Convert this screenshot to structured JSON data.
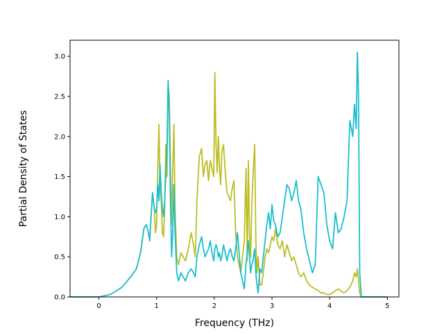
{
  "chart_data": {
    "type": "line",
    "title": "",
    "xlabel": "Frequency (THz)",
    "ylabel": "Partial Density of States",
    "xlim": [
      -0.5,
      5.2
    ],
    "ylim": [
      0,
      3.2
    ],
    "xticks": [
      0,
      1,
      2,
      3,
      4,
      5
    ],
    "yticks": [
      0.0,
      0.5,
      1.0,
      1.5,
      2.0,
      2.5,
      3.0
    ],
    "xtick_labels": [
      "0",
      "1",
      "2",
      "3",
      "4",
      "5"
    ],
    "ytick_labels": [
      "0.0",
      "0.5",
      "1.0",
      "1.5",
      "2.0",
      "2.5",
      "3.0"
    ],
    "grid": false,
    "series": [
      {
        "color": "#bcbd22",
        "x": [
          -0.5,
          0,
          0.2,
          0.4,
          0.55,
          0.65,
          0.72,
          0.78,
          0.82,
          0.86,
          0.88,
          0.9,
          0.93,
          0.96,
          0.98,
          1.0,
          1.02,
          1.04,
          1.06,
          1.08,
          1.1,
          1.12,
          1.14,
          1.16,
          1.18,
          1.2,
          1.22,
          1.24,
          1.26,
          1.28,
          1.3,
          1.32,
          1.35,
          1.38,
          1.42,
          1.46,
          1.5,
          1.55,
          1.6,
          1.64,
          1.67,
          1.7,
          1.74,
          1.78,
          1.81,
          1.84,
          1.87,
          1.9,
          1.93,
          1.96,
          1.99,
          2.01,
          2.03,
          2.05,
          2.07,
          2.09,
          2.11,
          2.13,
          2.16,
          2.19,
          2.22,
          2.25,
          2.28,
          2.31,
          2.34,
          2.37,
          2.4,
          2.43,
          2.46,
          2.49,
          2.52,
          2.55,
          2.57,
          2.59,
          2.61,
          2.63,
          2.65,
          2.67,
          2.7,
          2.72,
          2.74,
          2.76,
          2.79,
          2.82,
          2.85,
          2.88,
          2.91,
          2.94,
          2.97,
          3.0,
          3.03,
          3.06,
          3.1,
          3.14,
          3.18,
          3.22,
          3.26,
          3.3,
          3.34,
          3.38,
          3.42,
          3.46,
          3.5,
          3.55,
          3.6,
          3.65,
          3.7,
          3.75,
          3.8,
          3.85,
          3.9,
          3.95,
          4.0,
          4.05,
          4.1,
          4.15,
          4.2,
          4.25,
          4.3,
          4.35,
          4.4,
          4.43,
          4.46,
          4.48,
          4.5,
          4.52,
          4.55,
          5.0
        ],
        "y": [
          0,
          0,
          0.03,
          0.12,
          0.25,
          0.35,
          0.55,
          0.85,
          0.9,
          0.8,
          0.7,
          0.95,
          1.3,
          1.1,
          0.8,
          0.9,
          1.6,
          2.15,
          1.4,
          1.2,
          0.8,
          0.75,
          1.1,
          1.9,
          1.5,
          2.65,
          2.5,
          1.6,
          0.9,
          1.6,
          2.15,
          1.1,
          0.5,
          0.4,
          0.55,
          0.5,
          0.45,
          0.6,
          0.8,
          0.65,
          0.5,
          1.2,
          1.75,
          1.85,
          1.5,
          1.65,
          1.7,
          1.45,
          1.7,
          1.6,
          1.5,
          2.8,
          1.9,
          1.55,
          2.0,
          1.6,
          1.4,
          1.8,
          1.9,
          1.55,
          1.3,
          1.25,
          1.2,
          1.35,
          1.45,
          0.8,
          0.5,
          0.4,
          0.3,
          0.5,
          0.7,
          1.6,
          0.45,
          1.7,
          0.8,
          0.5,
          1.1,
          1.5,
          1.9,
          0.7,
          0.3,
          0.5,
          0.15,
          0.15,
          0.3,
          0.5,
          0.6,
          0.55,
          0.65,
          0.75,
          0.7,
          0.85,
          0.65,
          0.6,
          0.7,
          0.5,
          0.65,
          0.55,
          0.45,
          0.5,
          0.4,
          0.3,
          0.25,
          0.3,
          0.2,
          0.15,
          0.12,
          0.1,
          0.08,
          0.05,
          0.05,
          0.03,
          0.03,
          0.05,
          0.08,
          0.1,
          0.07,
          0.05,
          0.08,
          0.12,
          0.2,
          0.3,
          0.25,
          0.35,
          0.2,
          0.05,
          0,
          0
        ]
      },
      {
        "color": "#17becf",
        "x": [
          -0.5,
          0,
          0.2,
          0.4,
          0.55,
          0.65,
          0.72,
          0.78,
          0.82,
          0.86,
          0.88,
          0.9,
          0.93,
          0.96,
          0.98,
          1.0,
          1.02,
          1.04,
          1.06,
          1.08,
          1.1,
          1.12,
          1.14,
          1.16,
          1.18,
          1.2,
          1.22,
          1.24,
          1.26,
          1.28,
          1.3,
          1.32,
          1.35,
          1.38,
          1.42,
          1.46,
          1.5,
          1.55,
          1.6,
          1.64,
          1.67,
          1.7,
          1.74,
          1.78,
          1.81,
          1.84,
          1.87,
          1.9,
          1.93,
          1.96,
          1.99,
          2.01,
          2.03,
          2.05,
          2.07,
          2.09,
          2.11,
          2.13,
          2.16,
          2.19,
          2.22,
          2.25,
          2.28,
          2.31,
          2.34,
          2.37,
          2.4,
          2.43,
          2.46,
          2.49,
          2.52,
          2.55,
          2.57,
          2.59,
          2.61,
          2.63,
          2.65,
          2.67,
          2.7,
          2.72,
          2.74,
          2.76,
          2.79,
          2.82,
          2.85,
          2.88,
          2.91,
          2.94,
          2.97,
          3.0,
          3.03,
          3.06,
          3.1,
          3.14,
          3.18,
          3.22,
          3.26,
          3.3,
          3.34,
          3.38,
          3.42,
          3.46,
          3.5,
          3.55,
          3.6,
          3.65,
          3.7,
          3.75,
          3.8,
          3.85,
          3.9,
          3.95,
          4.0,
          4.05,
          4.1,
          4.15,
          4.2,
          4.25,
          4.3,
          4.35,
          4.4,
          4.43,
          4.46,
          4.48,
          4.5,
          4.52,
          4.55,
          5.0
        ],
        "y": [
          0,
          0,
          0.03,
          0.12,
          0.25,
          0.35,
          0.55,
          0.85,
          0.9,
          0.8,
          0.7,
          0.95,
          1.3,
          1.1,
          1.05,
          1.1,
          1.4,
          1.2,
          1.65,
          1.3,
          1.1,
          1.0,
          1.2,
          1.5,
          1.9,
          2.7,
          2.3,
          1.2,
          0.5,
          0.8,
          1.4,
          0.8,
          0.3,
          0.2,
          0.3,
          0.25,
          0.2,
          0.3,
          0.35,
          0.3,
          0.25,
          0.5,
          0.65,
          0.75,
          0.6,
          0.5,
          0.55,
          0.6,
          0.7,
          0.55,
          0.45,
          0.6,
          0.65,
          0.6,
          0.5,
          0.55,
          0.45,
          0.5,
          0.65,
          0.55,
          0.45,
          0.55,
          0.6,
          0.5,
          0.45,
          0.6,
          0.8,
          0.55,
          0.3,
          0.2,
          0.1,
          0.4,
          0.55,
          0.7,
          0.5,
          0.3,
          0.4,
          0.45,
          0.6,
          0.3,
          0.15,
          0.05,
          0.35,
          0.3,
          0.5,
          0.7,
          0.9,
          1.05,
          0.85,
          1.15,
          0.95,
          0.9,
          0.75,
          0.8,
          1.0,
          1.2,
          1.4,
          1.35,
          1.2,
          1.3,
          1.45,
          1.2,
          1.1,
          0.8,
          0.6,
          0.45,
          0.3,
          0.4,
          1.5,
          1.4,
          1.3,
          0.9,
          0.7,
          0.6,
          1.05,
          0.8,
          0.85,
          1.0,
          1.2,
          2.2,
          2.0,
          2.4,
          2.1,
          3.05,
          2.5,
          0.3,
          0,
          0
        ]
      }
    ]
  }
}
